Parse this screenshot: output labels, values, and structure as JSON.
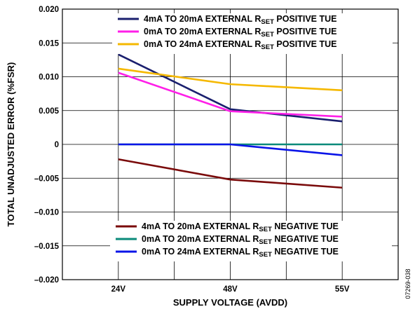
{
  "chart_data": {
    "type": "line",
    "xlabel": "SUPPLY VOLTAGE (AVDD)",
    "ylabel": "TOTAL UNADJUSTED ERROR (%FSR)",
    "categories": [
      "24V",
      "48V",
      "55V"
    ],
    "ylim": [
      -0.02,
      0.02
    ],
    "yticks": [
      "0.020",
      "0.015",
      "0.010",
      "0.005",
      "0",
      "–0.005",
      "–0.010",
      "–0.015",
      "–0.020"
    ],
    "grid": true,
    "series": [
      {
        "name_main": "4mA TO 20mA EXTERNAL R",
        "name_sub": "SET",
        "name_suffix": " POSITIVE TUE",
        "color": "#1a1f6e",
        "values": [
          0.0133,
          0.0052,
          0.0034
        ]
      },
      {
        "name_main": "0mA TO 20mA EXTERNAL R",
        "name_sub": "SET",
        "name_suffix": " POSITIVE TUE",
        "color": "#ff1fe8",
        "values": [
          0.0106,
          0.0049,
          0.0041
        ]
      },
      {
        "name_main": "0mA TO 24mA EXTERNAL R",
        "name_sub": "SET",
        "name_suffix": " POSITIVE TUE",
        "color": "#f5b800",
        "values": [
          0.0112,
          0.0089,
          0.008
        ]
      },
      {
        "name_main": "4mA TO 20mA EXTERNAL R",
        "name_sub": "SET",
        "name_suffix": " NEGATIVE TUE",
        "color": "#7a0a0a",
        "values": [
          -0.0022,
          -0.0052,
          -0.0064
        ]
      },
      {
        "name_main": "0mA TO 20mA EXTERNAL R",
        "name_sub": "SET",
        "name_suffix": " NEGATIVE TUE",
        "color": "#0a8a7a",
        "values": [
          0.0,
          0.0,
          0.0
        ]
      },
      {
        "name_main": "0mA TO 24mA EXTERNAL R",
        "name_sub": "SET",
        "name_suffix": " NEGATIVE TUE",
        "color": "#0a14e8",
        "values": [
          0.0,
          0.0,
          -0.0016
        ]
      }
    ],
    "legend_top": [
      0,
      1,
      2
    ],
    "legend_bottom": [
      3,
      4,
      5
    ],
    "figure_id": "07269-038"
  }
}
